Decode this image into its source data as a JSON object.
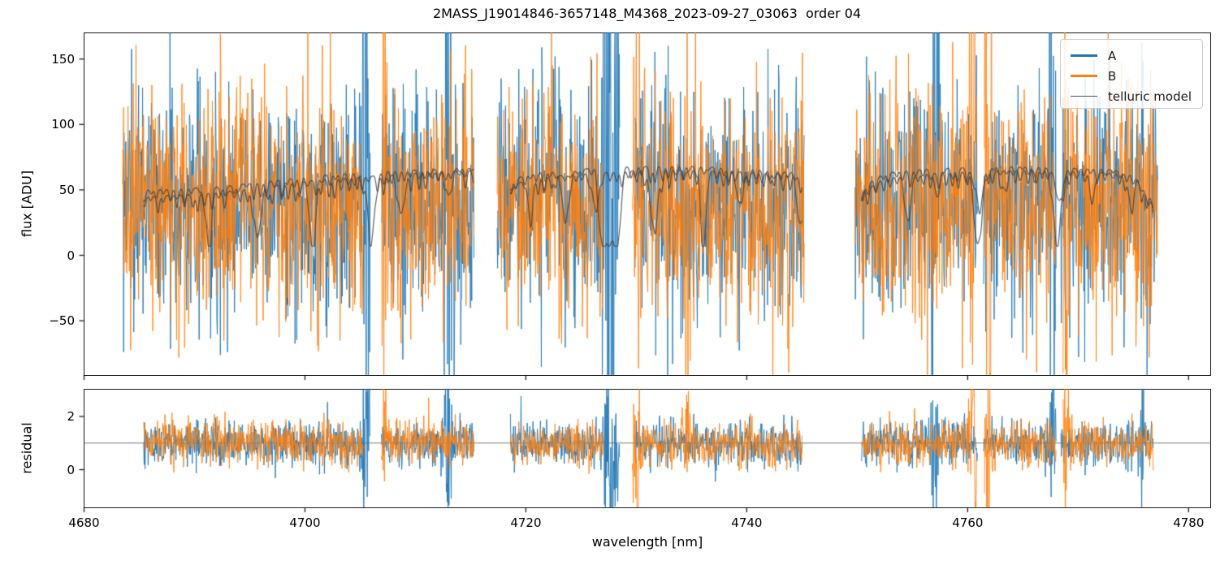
{
  "title": "2MASS_J19014846-3657148_M4368_2023-09-27_03063  order 04",
  "legend": {
    "entries": [
      {
        "label": "A",
        "color": "#1f77b4"
      },
      {
        "label": "B",
        "color": "#ff7f0e"
      },
      {
        "label": "telluric model",
        "color": "#545454"
      }
    ]
  },
  "chart_data": {
    "type": "line",
    "title": "2MASS_J19014846-3657148_M4368_2023-09-27_03063  order 04",
    "xlabel": "wavelength [nm]",
    "xlim": [
      4680,
      4782
    ],
    "xticks": [
      4680,
      4700,
      4720,
      4740,
      4760,
      4780
    ],
    "grid": false,
    "legend_position": "upper right",
    "panels": [
      {
        "name": "flux",
        "ylabel": "flux [ADU]",
        "ylim": [
          -91.5,
          170.3
        ],
        "yticks": [
          150,
          100,
          50,
          0,
          -50
        ]
      },
      {
        "name": "residual",
        "ylabel": "residual",
        "ylim": [
          -1.42,
          3.04
        ],
        "yticks": [
          2,
          0
        ],
        "hline": 1.0
      }
    ],
    "series": [
      {
        "name": "A",
        "color": "#1f77b4"
      },
      {
        "name": "B",
        "color": "#ff7f0e"
      },
      {
        "name": "telluric model",
        "color": "#3d3d3d"
      }
    ],
    "noise": {
      "mean": 40,
      "sigma": 45,
      "points_per_nm": 25,
      "residual_mean": 1.0,
      "residual_sigma": 0.42
    },
    "model_floor": 7,
    "segments": [
      {
        "noise_range": [
          4683.5,
          4715.3
        ],
        "model_range": [
          4685.4,
          4715.3
        ],
        "baseline": [
          [
            4685.4,
            50
          ],
          [
            4689,
            51
          ],
          [
            4693,
            53
          ],
          [
            4697,
            57
          ],
          [
            4701,
            61
          ],
          [
            4705,
            63
          ],
          [
            4709,
            65
          ],
          [
            4715.3,
            67
          ]
        ],
        "trace2_offset": [
          -5,
          -2
        ],
        "major_dips": [
          {
            "c": 4691.3,
            "w": 0.3,
            "d": 44,
            "t": 1
          },
          {
            "c": 4695.7,
            "w": 0.35,
            "d": 38,
            "t": 2
          },
          {
            "c": 4700.7,
            "w": 0.38,
            "d": 54,
            "t": 1
          },
          {
            "c": 4706.0,
            "w": 0.45,
            "d": 48,
            "t": 1
          },
          {
            "c": 4708.7,
            "w": 0.35,
            "d": 30,
            "t": 2
          },
          {
            "c": 4713.0,
            "w": 0.3,
            "d": 20,
            "t": 1
          }
        ],
        "scallop": {
          "spacing": 0.62,
          "min": 2,
          "max": 15,
          "width": 0.17
        },
        "noise_gaps_A": [
          [
            4705.9,
            4706.9
          ]
        ],
        "noise_gaps_B": [
          [
            4705.3,
            4706.9
          ]
        ],
        "bursts": [
          {
            "c": 4705.5,
            "w": 0.35,
            "amp": 3.0,
            "s": "A"
          },
          {
            "c": 4712.9,
            "w": 0.3,
            "amp": 2.2,
            "s": "A"
          },
          {
            "c": 4707.2,
            "w": 0.25,
            "amp": 1.8,
            "s": "B"
          }
        ]
      },
      {
        "noise_range": [
          4717.4,
          4745.2
        ],
        "model_range": [
          4718.6,
          4745.0
        ],
        "baseline": [
          [
            4718.6,
            58
          ],
          [
            4721,
            63
          ],
          [
            4725,
            66
          ],
          [
            4730,
            68
          ],
          [
            4735,
            68
          ],
          [
            4740,
            66
          ],
          [
            4745,
            63
          ]
        ],
        "trace2_offset": [
          -4,
          -2
        ],
        "major_dips": [
          {
            "c": 4720.4,
            "w": 0.3,
            "d": 25,
            "t": 2
          },
          {
            "c": 4723.6,
            "w": 0.45,
            "d": 35,
            "t": 1
          },
          {
            "c": 4727.6,
            "w": 2.2,
            "d": 56,
            "t": 1,
            "flat": true
          },
          {
            "c": 4726.3,
            "w": 0.4,
            "d": 25,
            "t": 2
          },
          {
            "c": 4731.6,
            "w": 0.45,
            "d": 40,
            "t": 2
          },
          {
            "c": 4736.1,
            "w": 0.3,
            "d": 58,
            "t": 2
          },
          {
            "c": 4739.3,
            "w": 0.35,
            "d": 25,
            "t": 1
          },
          {
            "c": 4744.8,
            "w": 0.35,
            "d": 38,
            "t": 1
          }
        ],
        "scallop": {
          "spacing": 0.6,
          "min": 2,
          "max": 14,
          "width": 0.17
        },
        "noise_gaps_A": [
          [
            4728.5,
            4729.8
          ]
        ],
        "noise_gaps_B": [
          [
            4727.0,
            4729.6
          ]
        ],
        "bursts": [
          {
            "c": 4727.7,
            "w": 0.6,
            "amp": 3.2,
            "s": "A"
          },
          {
            "c": 4730.0,
            "w": 0.3,
            "amp": 3.2,
            "s": "B"
          },
          {
            "c": 4734.6,
            "w": 0.3,
            "amp": 1.8,
            "s": "B"
          }
        ]
      },
      {
        "noise_range": [
          4749.8,
          4777.2
        ],
        "model_range": [
          4750.4,
          4776.8
        ],
        "baseline": [
          [
            4750.4,
            52
          ],
          [
            4752.5,
            63
          ],
          [
            4756,
            66
          ],
          [
            4760,
            67
          ],
          [
            4764,
            68
          ],
          [
            4768,
            67
          ],
          [
            4772,
            66
          ],
          [
            4775,
            64
          ],
          [
            4776.8,
            40
          ]
        ],
        "trace2_offset": [
          -4,
          -2
        ],
        "major_dips": [
          {
            "c": 4754.6,
            "w": 0.35,
            "d": 33,
            "t": 2
          },
          {
            "c": 4757.2,
            "w": 0.3,
            "d": 20,
            "t": 1
          },
          {
            "c": 4760.9,
            "w": 0.45,
            "d": 58,
            "t": 1
          },
          {
            "c": 4761.1,
            "w": 0.4,
            "d": 25,
            "t": 2
          },
          {
            "c": 4763.3,
            "w": 0.3,
            "d": 16,
            "t": 1
          },
          {
            "c": 4768.1,
            "w": 0.45,
            "d": 58,
            "t": 1
          },
          {
            "c": 4768.3,
            "w": 0.4,
            "d": 22,
            "t": 2
          },
          {
            "c": 4771.3,
            "w": 0.3,
            "d": 20,
            "t": 2
          },
          {
            "c": 4774.8,
            "w": 0.35,
            "d": 26,
            "t": 1
          }
        ],
        "scallop": {
          "spacing": 0.63,
          "min": 2,
          "max": 14,
          "width": 0.17
        },
        "noise_gaps_A": [
          [
            4760.9,
            4761.4
          ],
          [
            4768.0,
            4768.4
          ]
        ],
        "noise_gaps_B": [
          [
            4760.8,
            4761.5
          ],
          [
            4768.0,
            4768.6
          ]
        ],
        "bursts": [
          {
            "c": 4757.0,
            "w": 0.4,
            "amp": 2.0,
            "s": "A"
          },
          {
            "c": 4760.5,
            "w": 0.3,
            "amp": 2.6,
            "s": "B"
          },
          {
            "c": 4761.8,
            "w": 0.3,
            "amp": 2.4,
            "s": "B"
          },
          {
            "c": 4767.6,
            "w": 0.3,
            "amp": 2.2,
            "s": "A"
          },
          {
            "c": 4768.8,
            "w": 0.3,
            "amp": 2.4,
            "s": "B"
          },
          {
            "c": 4775.8,
            "w": 0.15,
            "amp": 2.5,
            "s": "A"
          }
        ]
      }
    ]
  }
}
